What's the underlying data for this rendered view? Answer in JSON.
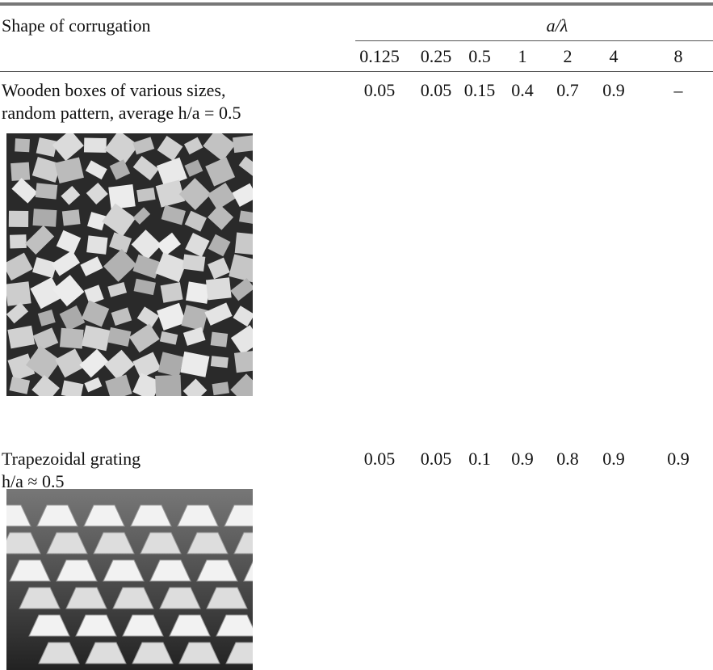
{
  "table": {
    "header": {
      "shape": "Shape of corrugation",
      "group": "a/λ"
    },
    "columns": [
      0.125,
      0.25,
      0.5,
      1,
      2,
      4,
      8
    ],
    "rows": [
      {
        "lines": [
          "Wooden boxes of various sizes,",
          "random pattern, average h/a = 0.5"
        ],
        "values": [
          0.05,
          0.05,
          0.15,
          0.4,
          0.7,
          0.9,
          "–"
        ]
      },
      {
        "lines": [
          "Trapezoidal grating",
          "h/a ≈ 0.5"
        ],
        "values": [
          0.05,
          0.05,
          0.1,
          0.9,
          0.8,
          0.9,
          0.9
        ]
      }
    ]
  }
}
